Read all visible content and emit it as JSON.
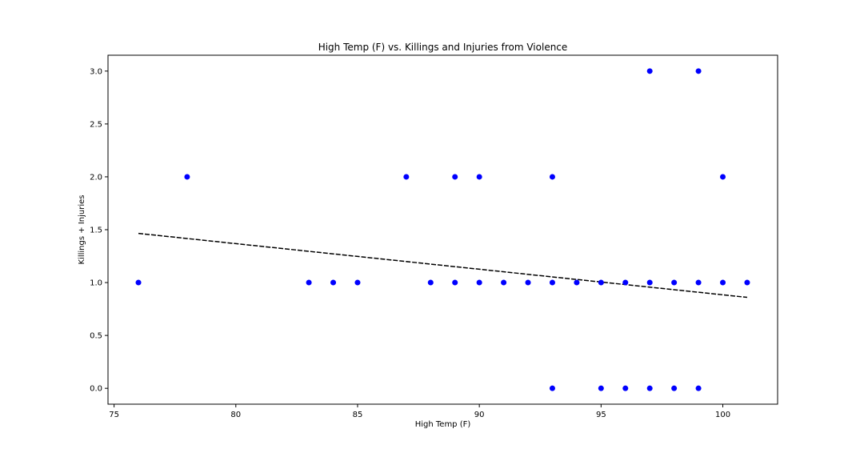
{
  "chart_data": {
    "type": "scatter",
    "title": "High Temp (F) vs. Killings and Injuries from Violence",
    "xlabel": "High Temp (F)",
    "ylabel": "Killings + Injuries",
    "xlim": [
      74.75,
      102.25
    ],
    "ylim": [
      -0.15,
      3.15
    ],
    "xticks": [
      75,
      80,
      85,
      90,
      95,
      100
    ],
    "xtick_labels": [
      "75",
      "80",
      "85",
      "90",
      "95",
      "100"
    ],
    "yticks": [
      0.0,
      0.5,
      1.0,
      1.5,
      2.0,
      2.5,
      3.0
    ],
    "ytick_labels": [
      "0.0",
      "0.5",
      "1.0",
      "1.5",
      "2.0",
      "2.5",
      "3.0"
    ],
    "grid": false,
    "points": {
      "color": "#0000ff",
      "x": [
        76,
        78,
        83,
        84,
        85,
        87,
        88,
        89,
        89,
        90,
        90,
        91,
        92,
        93,
        93,
        93,
        94,
        95,
        95,
        96,
        96,
        97,
        97,
        97,
        98,
        98,
        99,
        99,
        99,
        100,
        100,
        101
      ],
      "y": [
        1,
        2,
        1,
        1,
        1,
        2,
        1,
        1,
        2,
        1,
        2,
        1,
        1,
        1,
        2,
        0,
        1,
        1,
        0,
        1,
        0,
        3,
        1,
        0,
        1,
        0,
        3,
        1,
        0,
        1,
        2,
        1
      ]
    },
    "trendline": {
      "color": "#000000",
      "style": "dashed",
      "x": [
        76,
        101
      ],
      "y": [
        1.465,
        0.86
      ]
    }
  }
}
